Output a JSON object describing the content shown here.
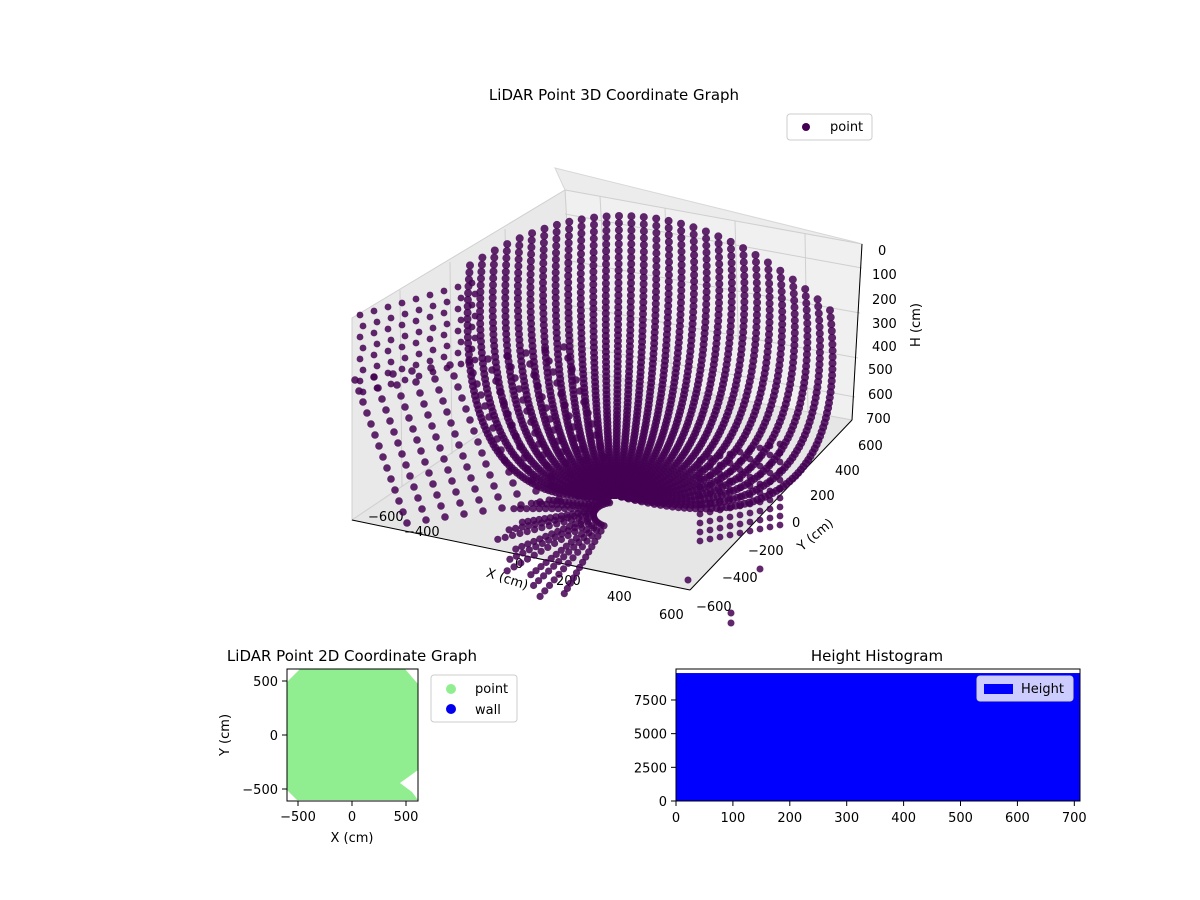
{
  "chart_data": [
    {
      "type": "scatter3d",
      "title": "LiDAR Point 3D Coordinate Graph",
      "xlabel": "X (cm)",
      "ylabel": "Y (cm)",
      "zlabel": "H (cm)",
      "xlim": [
        -600,
        600
      ],
      "ylim": [
        -600,
        600
      ],
      "zlim": [
        0,
        700
      ],
      "z_inverted": true,
      "x_ticks": [
        "−600",
        "−400",
        "0",
        "200",
        "400",
        "600"
      ],
      "y_ticks": [
        "−600",
        "−400",
        "−200",
        "0",
        "200",
        "400",
        "600"
      ],
      "z_ticks": [
        "0",
        "100",
        "200",
        "300",
        "400",
        "500",
        "600",
        "700"
      ],
      "legend": {
        "position": "top-right",
        "entries": [
          "point"
        ]
      },
      "series": [
        {
          "name": "point",
          "color": "#440154"
        }
      ],
      "grid": true
    },
    {
      "type": "scatter",
      "title": "LiDAR Point 2D Coordinate Graph",
      "xlabel": "X (cm)",
      "ylabel": "Y (cm)",
      "xlim": [
        -600,
        600
      ],
      "ylim": [
        -600,
        600
      ],
      "x_ticks": [
        "−500",
        "0",
        "500"
      ],
      "y_ticks": [
        "500",
        "0",
        "−500"
      ],
      "legend": {
        "position": "outside-right",
        "entries": [
          "point",
          "wall"
        ]
      },
      "series": [
        {
          "name": "point",
          "color": "#90ee90"
        },
        {
          "name": "wall",
          "color": "#0000ee"
        }
      ]
    },
    {
      "type": "bar",
      "title": "Height Histogram",
      "xlim": [
        0,
        710
      ],
      "ylim": [
        0,
        9800
      ],
      "bin_value": 9500,
      "x_ticks": [
        "0",
        "100",
        "200",
        "300",
        "400",
        "500",
        "600",
        "700"
      ],
      "y_ticks": [
        "7500",
        "5000",
        "2500",
        "0"
      ],
      "legend": {
        "position": "top-right",
        "entries": [
          "Height"
        ]
      },
      "series": [
        {
          "name": "Height",
          "color": "#0000ff"
        }
      ]
    }
  ]
}
